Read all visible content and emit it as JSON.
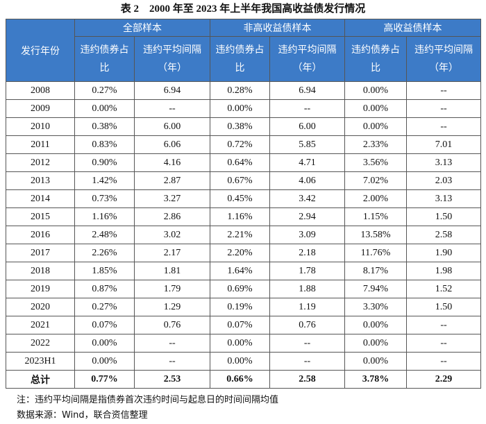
{
  "title": "表 2　2000 年至 2023 年上半年我国高收益债发行情况",
  "header": {
    "row_label": "发行年份",
    "groups": [
      "全部样本",
      "非高收益债样本",
      "高收益债样本"
    ],
    "columns": [
      "违约债券占比",
      "违约平均间隔（年）",
      "违约债券占比",
      "违约平均间隔（年）",
      "违约债券占比",
      "违约平均间隔（年）"
    ]
  },
  "table": {
    "rows": [
      [
        "2008",
        "0.27%",
        "6.94",
        "0.28%",
        "6.94",
        "0.00%",
        "--"
      ],
      [
        "2009",
        "0.00%",
        "--",
        "0.00%",
        "--",
        "0.00%",
        "--"
      ],
      [
        "2010",
        "0.38%",
        "6.00",
        "0.38%",
        "6.00",
        "0.00%",
        "--"
      ],
      [
        "2011",
        "0.83%",
        "6.06",
        "0.72%",
        "5.85",
        "2.33%",
        "7.01"
      ],
      [
        "2012",
        "0.90%",
        "4.16",
        "0.64%",
        "4.71",
        "3.56%",
        "3.13"
      ],
      [
        "2013",
        "1.42%",
        "2.87",
        "0.67%",
        "4.06",
        "7.02%",
        "2.03"
      ],
      [
        "2014",
        "0.73%",
        "3.27",
        "0.45%",
        "3.42",
        "2.00%",
        "3.13"
      ],
      [
        "2015",
        "1.16%",
        "2.86",
        "1.16%",
        "2.94",
        "1.15%",
        "1.50"
      ],
      [
        "2016",
        "2.48%",
        "3.02",
        "2.21%",
        "3.09",
        "13.58%",
        "2.58"
      ],
      [
        "2017",
        "2.26%",
        "2.17",
        "2.20%",
        "2.18",
        "11.76%",
        "1.90"
      ],
      [
        "2018",
        "1.85%",
        "1.81",
        "1.64%",
        "1.78",
        "8.17%",
        "1.98"
      ],
      [
        "2019",
        "0.87%",
        "1.79",
        "0.69%",
        "1.88",
        "7.94%",
        "1.52"
      ],
      [
        "2020",
        "0.27%",
        "1.29",
        "0.19%",
        "1.19",
        "3.30%",
        "1.50"
      ],
      [
        "2021",
        "0.07%",
        "0.76",
        "0.07%",
        "0.76",
        "0.00%",
        "--"
      ],
      [
        "2022",
        "0.00%",
        "--",
        "0.00%",
        "--",
        "0.00%",
        "--"
      ],
      [
        "2023H1",
        "0.00%",
        "--",
        "0.00%",
        "--",
        "0.00%",
        "--"
      ]
    ],
    "total": [
      "总计",
      "0.77%",
      "2.53",
      "0.66%",
      "2.58",
      "3.78%",
      "2.29"
    ]
  },
  "notes": [
    "注：违约平均间隔是指债券首次违约时间与起息日的时间间隔均值",
    "数据来源：Wind，联合资信整理"
  ]
}
